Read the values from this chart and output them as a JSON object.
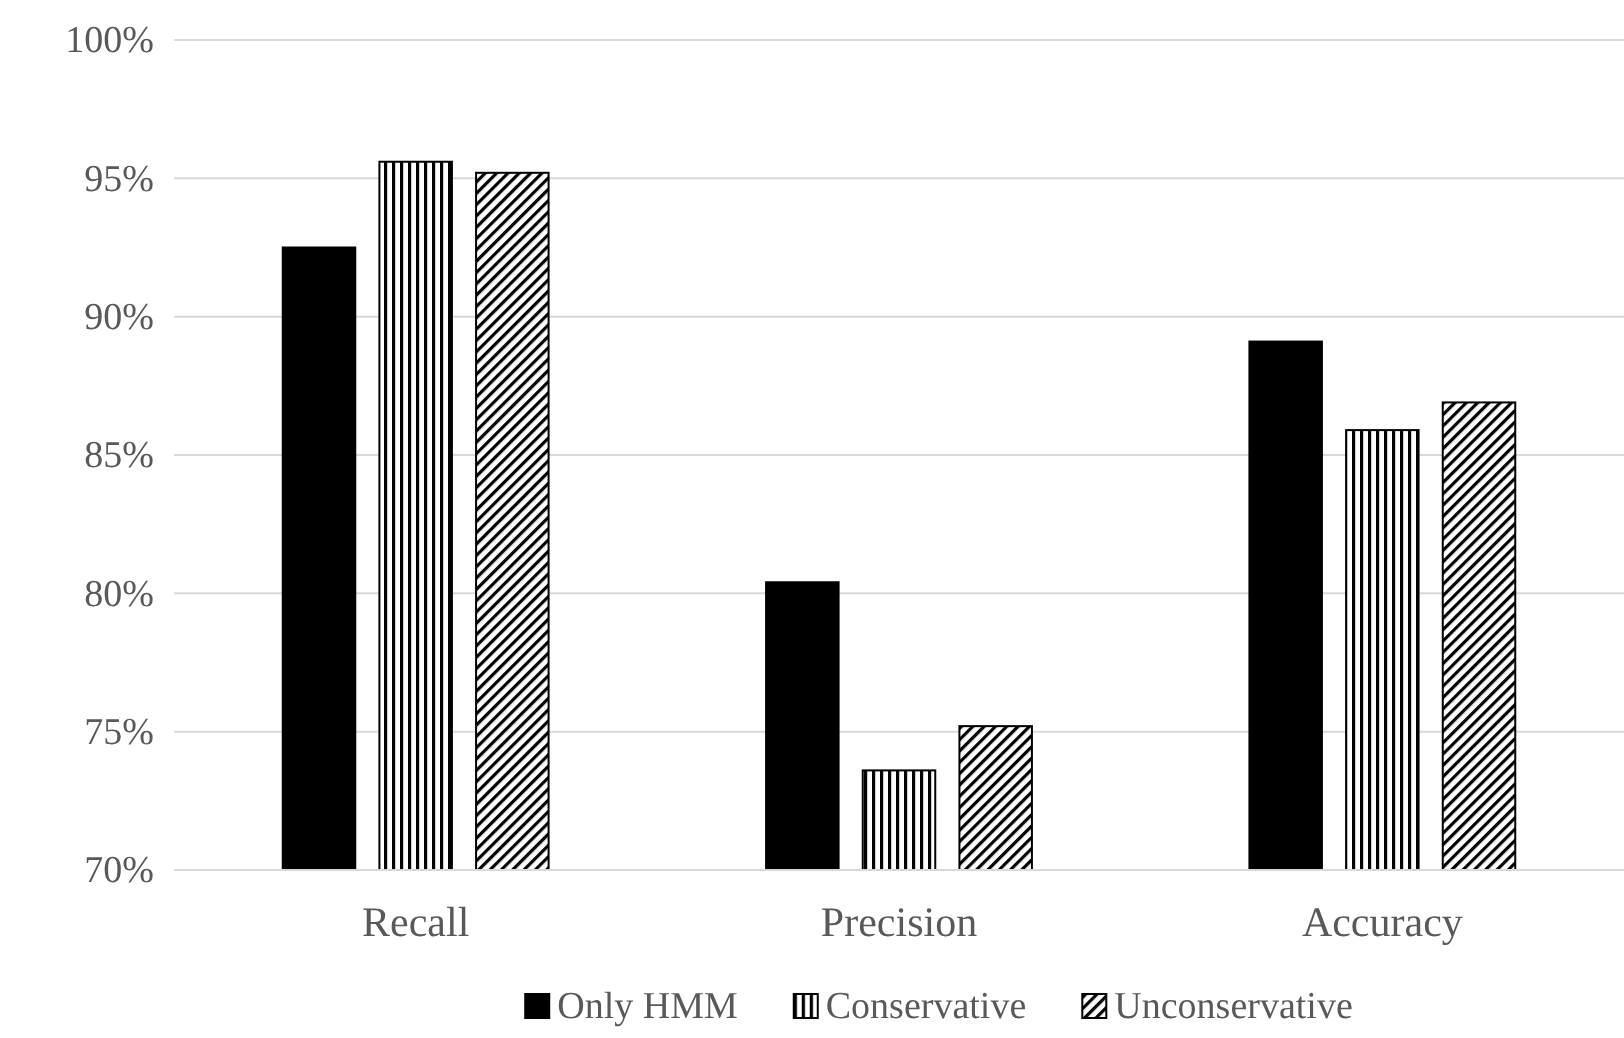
{
  "chart_data": {
    "type": "bar",
    "categories": [
      "Recall",
      "Precision",
      "Accuracy"
    ],
    "series": [
      {
        "name": "Only HMM",
        "color": "#000000",
        "values": [
          92.5,
          80.4,
          89.1
        ]
      },
      {
        "name": "Conservative",
        "color": "#000000",
        "values": [
          95.6,
          73.6,
          85.9
        ]
      },
      {
        "name": "Unconservative",
        "color": "#000000",
        "values": [
          95.2,
          75.2,
          86.9
        ]
      }
    ],
    "ylim": [
      70,
      100
    ],
    "yticks": [
      {
        "value": 70,
        "label": "70%"
      },
      {
        "value": 75,
        "label": "75%"
      },
      {
        "value": 80,
        "label": "80%"
      },
      {
        "value": 85,
        "label": "85%"
      },
      {
        "value": 90,
        "label": "90%"
      },
      {
        "value": 95,
        "label": "95%"
      },
      {
        "value": 100,
        "label": "100%"
      }
    ],
    "grid": "y",
    "legend": "bottom"
  }
}
